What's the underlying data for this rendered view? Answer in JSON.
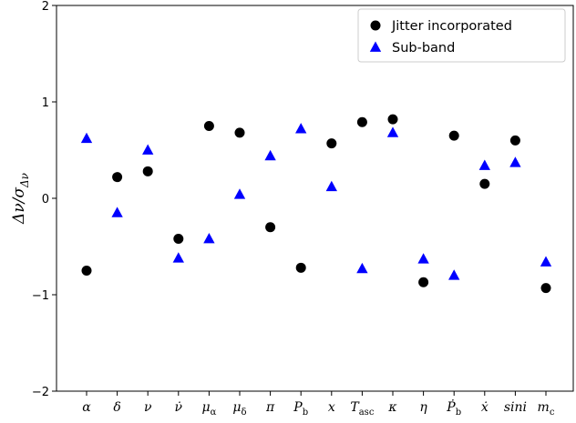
{
  "chart_data": {
    "type": "scatter",
    "title": "",
    "xlabel": "",
    "ylabel": "Δν/σΔν",
    "ylim": [
      -2,
      2
    ],
    "yticks": [
      -2,
      -1,
      0,
      1,
      2
    ],
    "yticklabels": [
      "−2",
      "−1",
      "0",
      "1",
      "2"
    ],
    "categories": [
      "α",
      "δ",
      "ν",
      "ν̇",
      "μα",
      "μδ",
      "π",
      "Pb",
      "x",
      "Tasc",
      "κ",
      "η",
      "Ṗb",
      "ẋ",
      "sini",
      "mc"
    ],
    "legend_position": "top-right",
    "grid": false,
    "series": [
      {
        "name": "Jitter incorporated",
        "marker": "circle",
        "color": "#000000",
        "values": [
          -0.75,
          0.22,
          0.28,
          -0.42,
          0.75,
          0.68,
          -0.3,
          -0.72,
          0.57,
          0.79,
          0.82,
          -0.87,
          0.65,
          0.15,
          0.6,
          -0.93
        ]
      },
      {
        "name": "Sub-band",
        "marker": "triangle",
        "color": "#0000ff",
        "values": [
          0.62,
          -0.15,
          0.5,
          -0.62,
          -0.42,
          0.04,
          0.44,
          0.72,
          0.12,
          -0.73,
          0.68,
          -0.63,
          -0.8,
          0.34,
          0.37,
          -0.66
        ]
      }
    ]
  }
}
